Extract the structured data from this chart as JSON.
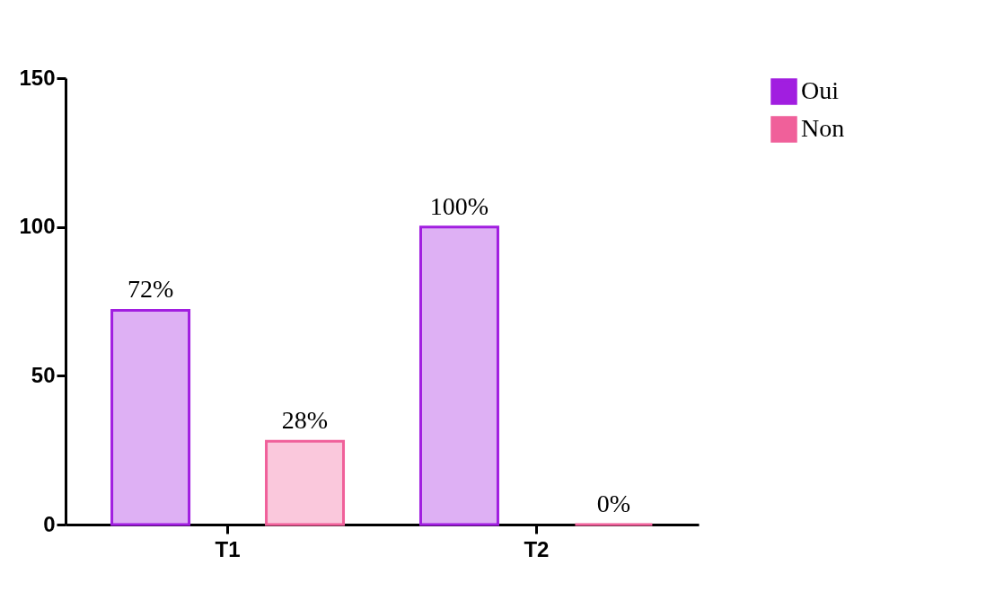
{
  "chart_data": {
    "type": "bar",
    "categories": [
      "T1",
      "T2"
    ],
    "series": [
      {
        "name": "Oui",
        "color": "#a11ee0",
        "values": [
          72,
          100
        ],
        "value_labels": [
          "72%",
          "100%"
        ]
      },
      {
        "name": "Non",
        "color": "#f0609a",
        "values": [
          28,
          0
        ],
        "value_labels": [
          "28%",
          "0%"
        ]
      }
    ],
    "ylim": [
      0,
      150
    ],
    "yticks": [
      0,
      50,
      100,
      150
    ],
    "grid": false,
    "legend": "top right"
  }
}
